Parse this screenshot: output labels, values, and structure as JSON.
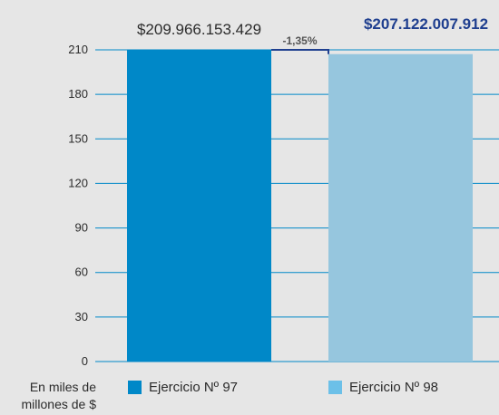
{
  "chart_data": {
    "type": "bar",
    "categories": [
      "Ejercicio Nº 97",
      "Ejercicio Nº 98"
    ],
    "values": [
      209.966153429,
      207.122007912
    ],
    "value_labels": [
      "$209.966.153.429",
      "$207.122.007.912"
    ],
    "change_label": "-1,35%",
    "unit_label": "En miles de millones de $",
    "ylim": [
      0,
      210
    ],
    "yticks": [
      0,
      30,
      60,
      90,
      120,
      150,
      180,
      210
    ],
    "grid": true,
    "legend_position": "bottom",
    "colors": [
      "#0088c8",
      "#96c6de"
    ],
    "legend_colors": [
      "#0088c8",
      "#6cc0e8"
    ],
    "gridline_color": "#0088c8",
    "change_bracket_color": "#1f3f8f"
  }
}
